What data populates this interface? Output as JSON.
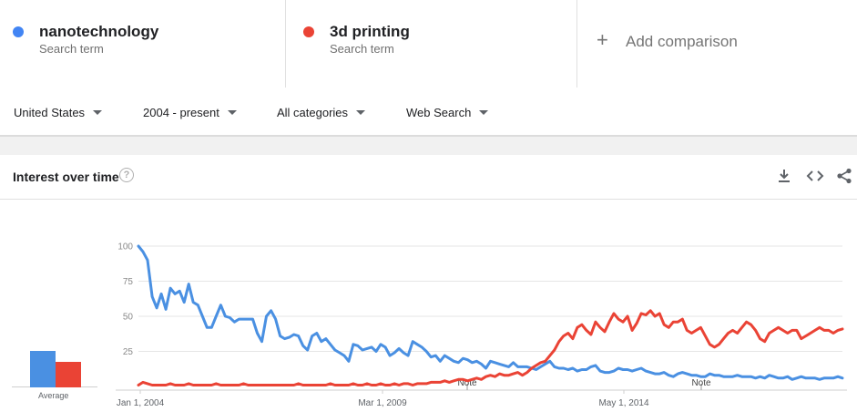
{
  "terms": [
    {
      "name": "nanotechnology",
      "sub": "Search term",
      "color": "#4285f4"
    },
    {
      "name": "3d printing",
      "sub": "Search term",
      "color": "#ea4335"
    }
  ],
  "add_comparison": "Add comparison",
  "filters": {
    "region": "United States",
    "time": "2004 - present",
    "category": "All categories",
    "property": "Web Search"
  },
  "card": {
    "title": "Interest over time",
    "help_glyph": "?",
    "average_label": "Average"
  },
  "icons": [
    "help-icon",
    "download-icon",
    "embed-icon",
    "share-icon"
  ],
  "chart_data": {
    "type": "line",
    "y_ticks": [
      "100",
      "75",
      "50",
      "25"
    ],
    "x_labels": [
      "Jan 1, 2004",
      "Mar 1, 2009",
      "May 1, 2014"
    ],
    "notes": [
      "Note",
      "Note"
    ],
    "ylim": [
      0,
      100
    ],
    "averages": {
      "nanotechnology": 26,
      "3d printing": 18
    },
    "series": [
      {
        "name": "nanotechnology",
        "color": "#4a90e2",
        "values": [
          100,
          96,
          90,
          64,
          56,
          66,
          55,
          70,
          66,
          68,
          60,
          73,
          60,
          58,
          50,
          42,
          42,
          50,
          58,
          50,
          49,
          46,
          48,
          48,
          48,
          48,
          38,
          32,
          50,
          54,
          48,
          36,
          34,
          35,
          37,
          36,
          29,
          26,
          36,
          38,
          32,
          34,
          30,
          26,
          24,
          22,
          18,
          30,
          29,
          26,
          27,
          28,
          25,
          30,
          28,
          22,
          24,
          27,
          24,
          22,
          32,
          30,
          28,
          25,
          21,
          22,
          18,
          22,
          20,
          18,
          17,
          20,
          19,
          17,
          18,
          16,
          13,
          18,
          17,
          16,
          15,
          14,
          17,
          14,
          14,
          14,
          13,
          12,
          14,
          16,
          18,
          14,
          13,
          13,
          12,
          13,
          11,
          12,
          12,
          14,
          15,
          11,
          10,
          10,
          11,
          13,
          12,
          12,
          11,
          12,
          13,
          11,
          10,
          9,
          9,
          10,
          8,
          7,
          9,
          10,
          9,
          8,
          8,
          7,
          7,
          9,
          8,
          8,
          7,
          7,
          7,
          8,
          7,
          7,
          7,
          6,
          7,
          6,
          8,
          7,
          6,
          6,
          7,
          5,
          6,
          7,
          6,
          6,
          6,
          5,
          6,
          6,
          6,
          7,
          6
        ]
      },
      {
        "name": "3d printing",
        "color": "#ea4335",
        "values": [
          1,
          3,
          2,
          1,
          1,
          1,
          1,
          2,
          1,
          1,
          1,
          2,
          1,
          1,
          1,
          1,
          1,
          2,
          1,
          1,
          1,
          1,
          1,
          2,
          1,
          1,
          1,
          1,
          1,
          1,
          1,
          1,
          1,
          1,
          1,
          2,
          1,
          1,
          1,
          1,
          1,
          1,
          2,
          1,
          1,
          1,
          1,
          2,
          1,
          1,
          2,
          1,
          1,
          2,
          1,
          1,
          2,
          1,
          2,
          2,
          1,
          2,
          2,
          2,
          3,
          3,
          3,
          4,
          3,
          4,
          5,
          5,
          4,
          5,
          6,
          5,
          7,
          8,
          7,
          9,
          8,
          8,
          9,
          10,
          8,
          10,
          13,
          15,
          17,
          18,
          22,
          26,
          32,
          36,
          38,
          34,
          42,
          44,
          40,
          37,
          46,
          42,
          39,
          46,
          52,
          48,
          46,
          50,
          40,
          45,
          52,
          51,
          54,
          50,
          52,
          44,
          42,
          46,
          46,
          48,
          40,
          38,
          40,
          42,
          36,
          30,
          28,
          30,
          34,
          38,
          40,
          38,
          42,
          46,
          44,
          40,
          34,
          32,
          38,
          40,
          42,
          40,
          38,
          40,
          40,
          34,
          36,
          38,
          40,
          42,
          40,
          40,
          38,
          40,
          41
        ]
      }
    ]
  }
}
